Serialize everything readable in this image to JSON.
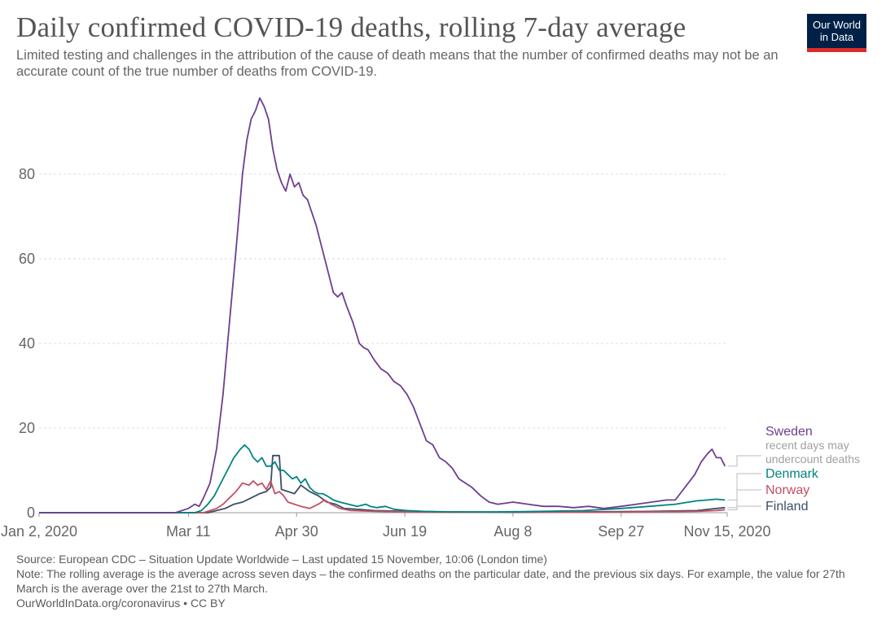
{
  "title": "Daily confirmed COVID-19 deaths, rolling 7-day average",
  "subtitle": "Limited testing and challenges in the attribution of the cause of death means that the number of confirmed deaths may not be an accurate count of the true number of deaths from COVID-19.",
  "logo": {
    "line1": "Our World",
    "line2": "in Data",
    "bg": "#002147",
    "accent": "#dc2a2a"
  },
  "footer": {
    "source": "Source: European CDC – Situation Update Worldwide – Last updated 15 November, 10:06 (London time)",
    "note": "Note: The rolling average is the average across seven days – the confirmed deaths on the particular date, and the previous six days. For example, the value for 27th March is the average over the 21st to 27th March.",
    "link": "OurWorldInData.org/coronavirus • CC BY"
  },
  "chart_data": {
    "type": "line",
    "title": "Daily confirmed COVID-19 deaths, rolling 7-day average",
    "x_tick_labels": [
      "Jan 2, 2020",
      "Mar 11",
      "Apr 30",
      "Jun 19",
      "Aug 8",
      "Sep 27",
      "Nov 15, 2020"
    ],
    "x_tick_dates": [
      "2020-01-02",
      "2020-03-11",
      "2020-04-30",
      "2020-06-19",
      "2020-08-08",
      "2020-09-27",
      "2020-11-15"
    ],
    "y_ticks": [
      "0",
      "20",
      "40",
      "60",
      "80"
    ],
    "ylim": [
      0,
      100
    ],
    "grid": true,
    "legend": "line-end labels (right)",
    "series": [
      {
        "name": "Sweden",
        "note": "recent days may undercount deaths",
        "color": "#6d3e91",
        "points": [
          [
            "2020-01-02",
            0
          ],
          [
            "2020-03-05",
            0
          ],
          [
            "2020-03-11",
            1.0
          ],
          [
            "2020-03-14",
            2.0
          ],
          [
            "2020-03-16",
            1.5
          ],
          [
            "2020-03-18",
            3.5
          ],
          [
            "2020-03-21",
            7
          ],
          [
            "2020-03-24",
            15
          ],
          [
            "2020-03-27",
            28
          ],
          [
            "2020-03-30",
            45
          ],
          [
            "2020-04-02",
            62
          ],
          [
            "2020-04-05",
            80
          ],
          [
            "2020-04-07",
            88
          ],
          [
            "2020-04-09",
            93
          ],
          [
            "2020-04-11",
            95
          ],
          [
            "2020-04-13",
            98
          ],
          [
            "2020-04-15",
            96
          ],
          [
            "2020-04-17",
            93
          ],
          [
            "2020-04-19",
            86
          ],
          [
            "2020-04-21",
            81
          ],
          [
            "2020-04-23",
            78
          ],
          [
            "2020-04-25",
            76
          ],
          [
            "2020-04-27",
            80
          ],
          [
            "2020-04-29",
            77
          ],
          [
            "2020-05-01",
            78
          ],
          [
            "2020-05-03",
            75
          ],
          [
            "2020-05-05",
            74
          ],
          [
            "2020-05-07",
            71
          ],
          [
            "2020-05-09",
            68
          ],
          [
            "2020-05-11",
            64
          ],
          [
            "2020-05-13",
            60
          ],
          [
            "2020-05-15",
            56
          ],
          [
            "2020-05-17",
            52
          ],
          [
            "2020-05-19",
            51
          ],
          [
            "2020-05-21",
            52
          ],
          [
            "2020-05-23",
            49
          ],
          [
            "2020-05-26",
            45
          ],
          [
            "2020-05-29",
            40
          ],
          [
            "2020-05-31",
            39
          ],
          [
            "2020-06-02",
            38.5
          ],
          [
            "2020-06-05",
            36
          ],
          [
            "2020-06-08",
            34
          ],
          [
            "2020-06-11",
            33
          ],
          [
            "2020-06-14",
            31
          ],
          [
            "2020-06-17",
            30
          ],
          [
            "2020-06-20",
            28
          ],
          [
            "2020-06-23",
            25
          ],
          [
            "2020-06-26",
            21
          ],
          [
            "2020-06-29",
            17
          ],
          [
            "2020-07-02",
            16
          ],
          [
            "2020-07-05",
            13
          ],
          [
            "2020-07-08",
            12
          ],
          [
            "2020-07-11",
            10.5
          ],
          [
            "2020-07-14",
            8
          ],
          [
            "2020-07-17",
            7
          ],
          [
            "2020-07-20",
            6
          ],
          [
            "2020-07-24",
            4
          ],
          [
            "2020-07-28",
            2.5
          ],
          [
            "2020-08-01",
            2
          ],
          [
            "2020-08-08",
            2.5
          ],
          [
            "2020-08-15",
            2
          ],
          [
            "2020-08-22",
            1.5
          ],
          [
            "2020-08-29",
            1.5
          ],
          [
            "2020-09-05",
            1.2
          ],
          [
            "2020-09-12",
            1.5
          ],
          [
            "2020-09-19",
            1.0
          ],
          [
            "2020-09-27",
            1.5
          ],
          [
            "2020-10-04",
            2
          ],
          [
            "2020-10-11",
            2.5
          ],
          [
            "2020-10-18",
            3
          ],
          [
            "2020-10-22",
            3
          ],
          [
            "2020-10-25",
            5
          ],
          [
            "2020-10-28",
            7
          ],
          [
            "2020-10-31",
            9
          ],
          [
            "2020-11-03",
            12
          ],
          [
            "2020-11-06",
            14
          ],
          [
            "2020-11-08",
            15
          ],
          [
            "2020-11-10",
            13
          ],
          [
            "2020-11-12",
            13
          ],
          [
            "2020-11-14",
            11
          ]
        ]
      },
      {
        "name": "Denmark",
        "color": "#00847e",
        "points": [
          [
            "2020-01-02",
            0
          ],
          [
            "2020-03-14",
            0
          ],
          [
            "2020-03-17",
            0.5
          ],
          [
            "2020-03-20",
            2
          ],
          [
            "2020-03-23",
            4
          ],
          [
            "2020-03-26",
            7
          ],
          [
            "2020-03-29",
            10
          ],
          [
            "2020-04-01",
            13
          ],
          [
            "2020-04-04",
            15
          ],
          [
            "2020-04-06",
            16
          ],
          [
            "2020-04-08",
            15
          ],
          [
            "2020-04-10",
            13
          ],
          [
            "2020-04-12",
            12
          ],
          [
            "2020-04-14",
            13
          ],
          [
            "2020-04-16",
            11
          ],
          [
            "2020-04-18",
            11
          ],
          [
            "2020-04-20",
            12
          ],
          [
            "2020-04-22",
            10
          ],
          [
            "2020-04-24",
            10
          ],
          [
            "2020-04-26",
            9
          ],
          [
            "2020-04-28",
            8
          ],
          [
            "2020-04-30",
            8.5
          ],
          [
            "2020-05-02",
            7
          ],
          [
            "2020-05-04",
            8
          ],
          [
            "2020-05-06",
            6
          ],
          [
            "2020-05-08",
            5
          ],
          [
            "2020-05-10",
            4.5
          ],
          [
            "2020-05-12",
            4.5
          ],
          [
            "2020-05-14",
            4
          ],
          [
            "2020-05-17",
            3
          ],
          [
            "2020-05-20",
            2.5
          ],
          [
            "2020-05-24",
            2
          ],
          [
            "2020-05-28",
            1.5
          ],
          [
            "2020-06-01",
            2
          ],
          [
            "2020-06-03",
            1.5
          ],
          [
            "2020-06-06",
            1.2
          ],
          [
            "2020-06-10",
            1.5
          ],
          [
            "2020-06-14",
            0.8
          ],
          [
            "2020-06-20",
            0.5
          ],
          [
            "2020-06-28",
            0.3
          ],
          [
            "2020-07-10",
            0.2
          ],
          [
            "2020-08-01",
            0.2
          ],
          [
            "2020-08-20",
            0.3
          ],
          [
            "2020-09-10",
            0.5
          ],
          [
            "2020-09-27",
            1.0
          ],
          [
            "2020-10-10",
            1.5
          ],
          [
            "2020-10-22",
            2.0
          ],
          [
            "2020-11-01",
            2.8
          ],
          [
            "2020-11-06",
            3.0
          ],
          [
            "2020-11-10",
            3.2
          ],
          [
            "2020-11-14",
            3.0
          ]
        ]
      },
      {
        "name": "Norway",
        "color": "#c15065",
        "points": [
          [
            "2020-01-02",
            0
          ],
          [
            "2020-03-18",
            0
          ],
          [
            "2020-03-21",
            0.5
          ],
          [
            "2020-03-24",
            1.0
          ],
          [
            "2020-03-27",
            2.0
          ],
          [
            "2020-03-30",
            3.5
          ],
          [
            "2020-04-02",
            5
          ],
          [
            "2020-04-05",
            7
          ],
          [
            "2020-04-08",
            6.5
          ],
          [
            "2020-04-10",
            7.5
          ],
          [
            "2020-04-12",
            6.5
          ],
          [
            "2020-04-14",
            7
          ],
          [
            "2020-04-16",
            5.5
          ],
          [
            "2020-04-18",
            7.5
          ],
          [
            "2020-04-20",
            4.5
          ],
          [
            "2020-04-22",
            5
          ],
          [
            "2020-04-24",
            4
          ],
          [
            "2020-04-26",
            2.5
          ],
          [
            "2020-04-29",
            2
          ],
          [
            "2020-05-02",
            1.5
          ],
          [
            "2020-05-06",
            1
          ],
          [
            "2020-05-10",
            2
          ],
          [
            "2020-05-13",
            3
          ],
          [
            "2020-05-16",
            2
          ],
          [
            "2020-05-20",
            1
          ],
          [
            "2020-05-25",
            0.5
          ],
          [
            "2020-06-05",
            0.3
          ],
          [
            "2020-06-20",
            0.2
          ],
          [
            "2020-07-10",
            0.1
          ],
          [
            "2020-08-10",
            0.2
          ],
          [
            "2020-09-10",
            0.1
          ],
          [
            "2020-10-10",
            0.2
          ],
          [
            "2020-11-01",
            0.3
          ],
          [
            "2020-11-10",
            0.5
          ],
          [
            "2020-11-14",
            0.7
          ]
        ]
      },
      {
        "name": "Finland",
        "color": "#3c4e66",
        "points": [
          [
            "2020-01-02",
            0
          ],
          [
            "2020-03-20",
            0
          ],
          [
            "2020-03-24",
            0.5
          ],
          [
            "2020-03-28",
            1
          ],
          [
            "2020-04-01",
            2
          ],
          [
            "2020-04-05",
            2.5
          ],
          [
            "2020-04-09",
            3.5
          ],
          [
            "2020-04-13",
            4.5
          ],
          [
            "2020-04-16",
            5
          ],
          [
            "2020-04-18",
            6
          ],
          [
            "2020-04-19",
            13.5
          ],
          [
            "2020-04-22",
            13.5
          ],
          [
            "2020-04-23",
            5.5
          ],
          [
            "2020-04-26",
            5
          ],
          [
            "2020-04-29",
            4.5
          ],
          [
            "2020-05-02",
            6.5
          ],
          [
            "2020-05-06",
            5
          ],
          [
            "2020-05-10",
            4
          ],
          [
            "2020-05-14",
            2.5
          ],
          [
            "2020-05-18",
            2
          ],
          [
            "2020-05-22",
            1
          ],
          [
            "2020-05-28",
            0.8
          ],
          [
            "2020-06-05",
            0.5
          ],
          [
            "2020-06-20",
            0.3
          ],
          [
            "2020-07-10",
            0.2
          ],
          [
            "2020-08-10",
            0.1
          ],
          [
            "2020-09-10",
            0.2
          ],
          [
            "2020-10-10",
            0.3
          ],
          [
            "2020-11-01",
            0.5
          ],
          [
            "2020-11-10",
            1.0
          ],
          [
            "2020-11-14",
            1.2
          ]
        ]
      }
    ]
  }
}
